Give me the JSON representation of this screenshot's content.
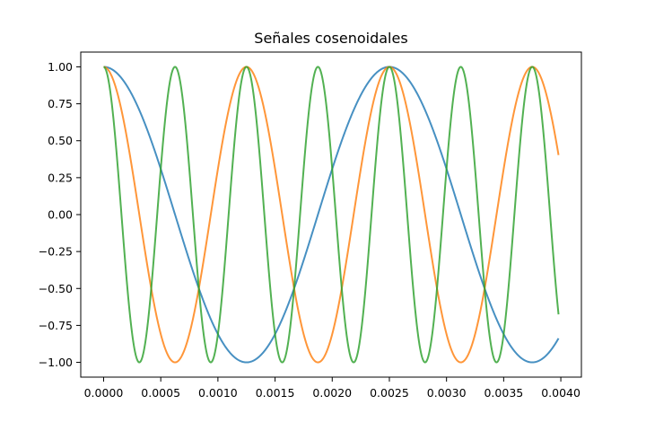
{
  "chart_data": {
    "type": "line",
    "title": "Señales cosenoidales",
    "xlabel": "",
    "ylabel": "",
    "xlim": [
      -0.0002,
      0.00418
    ],
    "ylim": [
      -1.1,
      1.1
    ],
    "grid": false,
    "x_ticks": [
      0.0,
      0.0005,
      0.001,
      0.0015,
      0.002,
      0.0025,
      0.003,
      0.0035,
      0.004
    ],
    "x_tick_labels": [
      "0.0000",
      "0.0005",
      "0.0010",
      "0.0015",
      "0.0020",
      "0.0025",
      "0.0030",
      "0.0035",
      "0.0040"
    ],
    "y_ticks": [
      1.0,
      0.75,
      0.5,
      0.25,
      0.0,
      -0.25,
      -0.5,
      -0.75,
      -1.0
    ],
    "y_tick_labels": [
      "1.00",
      "0.75",
      "0.50",
      "0.25",
      "0.00",
      "−0.25",
      "−0.50",
      "−0.75",
      "−1.00"
    ],
    "x_range": [
      0,
      0.00398
    ],
    "series": [
      {
        "function": "cos",
        "frequency_hz": 400,
        "color": "#1f77b4"
      },
      {
        "function": "cos",
        "frequency_hz": 800,
        "color": "#ff7f0e"
      },
      {
        "function": "cos",
        "frequency_hz": 1600,
        "color": "#2ca02c"
      }
    ]
  }
}
